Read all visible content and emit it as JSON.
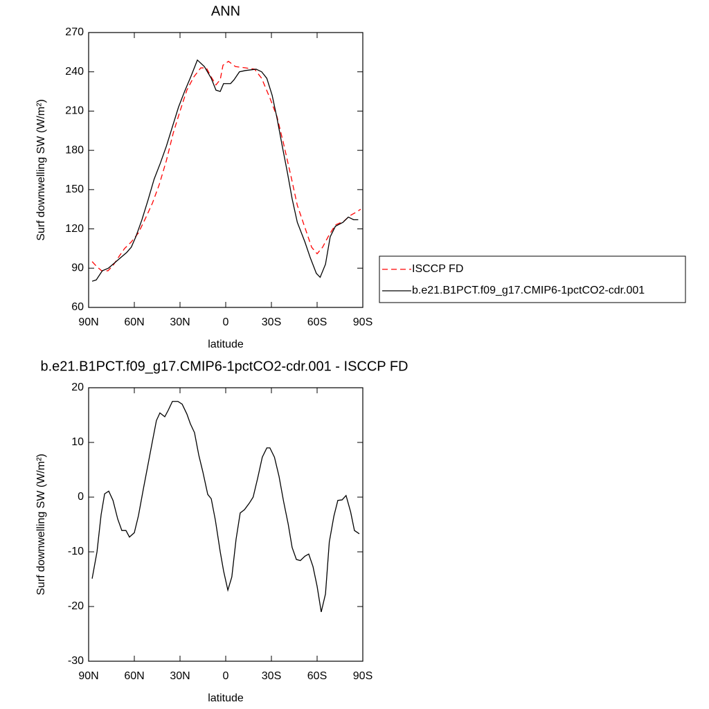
{
  "chart_data": [
    {
      "type": "line",
      "title": "ANN",
      "x_label": "latitude",
      "y_label": "Surf downwelling SW (W/m²)",
      "xlim": [
        90,
        -90
      ],
      "xticks": [
        {
          "value": 90,
          "label": "90N"
        },
        {
          "value": 60,
          "label": "60N"
        },
        {
          "value": 30,
          "label": "30N"
        },
        0,
        {
          "value": -30,
          "label": "30S"
        },
        {
          "value": -60,
          "label": "60S"
        },
        {
          "value": -90,
          "label": "90S"
        }
      ],
      "ylim": [
        60,
        270
      ],
      "yticks": [
        60,
        90,
        120,
        150,
        180,
        210,
        240,
        270
      ],
      "legend": "right",
      "series": [
        {
          "name": "ISCCP FD",
          "color": "#ff0000",
          "linestyle": "dashed",
          "x": [
            87.7,
            84.5,
            81.4,
            77.3,
            74,
            70,
            66.4,
            62,
            57.3,
            52.7,
            48,
            43.6,
            39,
            34.5,
            30,
            25.5,
            21,
            16.4,
            12.7,
            9.5,
            6.4,
            3.6,
            1.8,
            -1.8,
            -6.4,
            -13,
            -19,
            -23.6,
            -29,
            -33.6,
            -38,
            -42.7,
            -47,
            -52,
            -56.4,
            -60,
            -63.6,
            -67.7,
            -72,
            -77.7,
            -81.4,
            -86,
            -88.6
          ],
          "values": [
            95,
            91,
            88,
            88,
            92,
            99,
            105,
            110,
            117,
            128,
            140,
            154,
            172,
            193,
            210,
            226,
            236,
            243,
            243,
            236,
            230,
            234,
            245,
            248,
            244,
            243,
            242,
            235,
            220,
            206,
            185,
            161,
            138,
            121,
            106,
            101,
            106,
            115,
            123,
            126,
            130,
            133,
            135
          ]
        },
        {
          "name": "b.e21.B1PCT.f09_g17.CMIP6-1pctCO2-cdr.001",
          "color": "#000000",
          "linestyle": "solid",
          "x": [
            87.7,
            85,
            81,
            77,
            73,
            69,
            65,
            62,
            59,
            55,
            51,
            47,
            43,
            39,
            35,
            31,
            27,
            23,
            18.6,
            14,
            9.5,
            6.4,
            3.6,
            1.4,
            -3.2,
            -5.5,
            -9,
            -13,
            -20,
            -23.6,
            -27,
            -30.5,
            -33.6,
            -37,
            -40.5,
            -43.6,
            -47,
            -52,
            -55.5,
            -59.5,
            -62,
            -65.5,
            -68.6,
            -72,
            -77,
            -80.5,
            -84,
            -87
          ],
          "values": [
            80,
            81,
            88,
            90,
            94,
            98,
            102,
            106,
            114,
            127,
            142,
            158,
            170,
            183,
            198,
            213,
            225,
            236,
            249,
            244,
            235,
            226,
            225,
            231,
            231,
            234,
            240,
            241,
            242,
            240,
            235,
            222,
            205,
            184,
            163,
            143,
            125,
            110,
            98,
            86,
            83,
            93,
            114,
            122,
            125,
            129,
            127,
            127
          ]
        }
      ]
    },
    {
      "type": "line",
      "title": "b.e21.B1PCT.f09_g17.CMIP6-1pctCO2-cdr.001 - ISCCP FD",
      "x_label": "latitude",
      "y_label": "Surf downwelling SW (W/m²)",
      "xlim": [
        90,
        -90
      ],
      "xticks": [
        {
          "value": 90,
          "label": "90N"
        },
        {
          "value": 60,
          "label": "60N"
        },
        {
          "value": 30,
          "label": "30N"
        },
        0,
        {
          "value": -30,
          "label": "30S"
        },
        {
          "value": -60,
          "label": "60S"
        },
        {
          "value": -90,
          "label": "90S"
        }
      ],
      "ylim": [
        -30,
        20
      ],
      "yticks": [
        -30,
        -20,
        -10,
        0,
        10,
        20
      ],
      "series": [
        {
          "color": "#000000",
          "linestyle": "solid",
          "x": [
            87.7,
            84.5,
            81.8,
            79.5,
            76.8,
            74,
            70.9,
            68.2,
            65.5,
            63.2,
            60,
            57.3,
            54,
            51.4,
            48.2,
            45.5,
            43.2,
            40,
            37.7,
            35,
            31.4,
            28.6,
            25.5,
            23.2,
            20.5,
            17.7,
            15,
            11.8,
            9.5,
            6.8,
            3.6,
            1.4,
            -1.4,
            -4,
            -6.8,
            -9.5,
            -12.3,
            -15.5,
            -18,
            -21,
            -24,
            -27,
            -29,
            -32,
            -35,
            -38,
            -41,
            -43.6,
            -46.4,
            -49,
            -52,
            -54.5,
            -57.3,
            -60,
            -62.7,
            -65.5,
            -68,
            -71,
            -73.6,
            -76.4,
            -79,
            -82,
            -84.5,
            -87.7
          ],
          "values": [
            -14.9,
            -10,
            -3.2,
            0.6,
            1.1,
            -0.6,
            -4,
            -6.1,
            -6.1,
            -7.3,
            -6.5,
            -3.4,
            1.6,
            5.4,
            10.1,
            14,
            15.4,
            14.7,
            15.9,
            17.5,
            17.5,
            17,
            15.2,
            13.4,
            11.8,
            7.7,
            4.6,
            0.5,
            -0.3,
            -4.2,
            -10,
            -13.5,
            -17,
            -14.6,
            -7.7,
            -2.9,
            -2.3,
            -1.1,
            0,
            3.5,
            7.3,
            9,
            9,
            7.3,
            3.8,
            -0.8,
            -4.9,
            -9.2,
            -11.4,
            -11.6,
            -10.8,
            -10.4,
            -12.7,
            -16.3,
            -21,
            -17.7,
            -8.2,
            -3.5,
            -0.6,
            -0.5,
            0.3,
            -2.7,
            -6.1,
            -6.7
          ]
        }
      ]
    }
  ]
}
